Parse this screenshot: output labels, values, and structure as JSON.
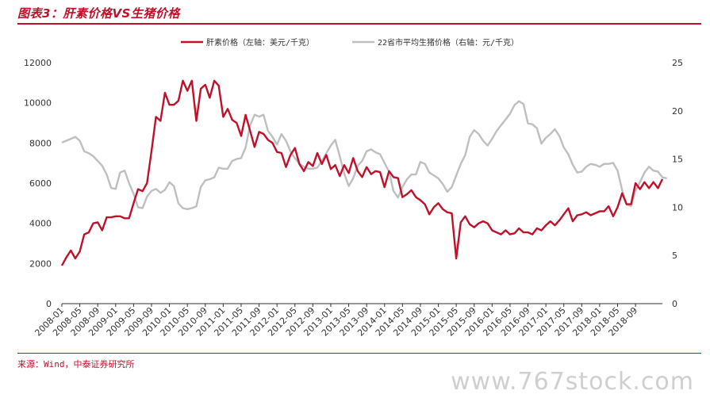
{
  "header": {
    "title": "图表3：肝素价格VS生猪价格"
  },
  "footer": {
    "source": "来源：Wind，中泰证券研究所",
    "watermark": "www.767stock.com"
  },
  "colors": {
    "heparin": "#c0102a",
    "hog": "#bfbfbf",
    "accent": "#c0102a"
  },
  "chart_data": {
    "type": "line",
    "x_start": "2008-01",
    "x_tick_labels": [
      "2008-01",
      "2008-05",
      "2008-09",
      "2009-01",
      "2009-05",
      "2009-09",
      "2010-01",
      "2010-05",
      "2010-09",
      "2011-01",
      "2011-05",
      "2011-09",
      "2012-01",
      "2012-05",
      "2012-09",
      "2013-01",
      "2013-05",
      "2013-09",
      "2014-01",
      "2014-05",
      "2014-09",
      "2015-01",
      "2015-05",
      "2015-09",
      "2016-01",
      "2016-05",
      "2016-09",
      "2017-01",
      "2017-05",
      "2017-09",
      "2018-01",
      "2018-05",
      "2018-09"
    ],
    "y_left": {
      "ticks": [
        0,
        2000,
        4000,
        6000,
        8000,
        10000,
        12000
      ],
      "range": [
        0,
        12000
      ]
    },
    "y_right": {
      "ticks": [
        0,
        5,
        10,
        15,
        20,
        25
      ],
      "range": [
        0,
        25
      ]
    },
    "legend": {
      "placement": "top",
      "items": [
        "肝素价格（左轴：美元/千克）",
        "22省市平均生猪价格（右轴：元/千克）"
      ]
    },
    "series": [
      {
        "name": "肝素价格（左轴：美元/千克）",
        "axis": "left",
        "values": [
          1900,
          2300,
          2650,
          2250,
          2600,
          3450,
          3550,
          4000,
          4050,
          3650,
          4300,
          4300,
          4350,
          4350,
          4250,
          4250,
          5000,
          5700,
          5600,
          6000,
          7600,
          9300,
          9100,
          10500,
          9900,
          9900,
          10100,
          11100,
          10600,
          11100,
          9100,
          10700,
          10900,
          10250,
          11100,
          10850,
          9300,
          9700,
          9150,
          9000,
          8350,
          9400,
          8600,
          7800,
          8550,
          8450,
          8150,
          8000,
          7550,
          7500,
          6800,
          7400,
          7750,
          6950,
          6600,
          7050,
          6850,
          7500,
          6950,
          7400,
          6700,
          6900,
          6350,
          6900,
          6500,
          7250,
          6600,
          6300,
          6800,
          6450,
          6600,
          6550,
          5800,
          6600,
          6300,
          6250,
          5300,
          5450,
          5650,
          5300,
          5150,
          4950,
          4450,
          4800,
          5000,
          4700,
          4550,
          4500,
          2250,
          4050,
          4350,
          3950,
          3800,
          4000,
          4100,
          4000,
          3650,
          3550,
          3450,
          3650,
          3450,
          3500,
          3750,
          3550,
          3550,
          3450,
          3750,
          3650,
          3900,
          4100,
          3900,
          4150,
          4450,
          4750,
          4100,
          4400,
          4450,
          4550,
          4400,
          4500,
          4600,
          4600,
          4850,
          4350,
          4800,
          5500,
          4950,
          4950,
          6000,
          5700,
          6050,
          5750,
          6050,
          5750,
          6200
        ]
      },
      {
        "name": "22省市平均生猪价格（右轴：元/千克）",
        "axis": "right",
        "values": [
          16.7,
          16.9,
          17.1,
          17.3,
          16.9,
          15.8,
          15.6,
          15.3,
          14.8,
          14.3,
          13.4,
          12.0,
          11.9,
          13.6,
          13.8,
          12.5,
          11.4,
          10.0,
          9.9,
          11.1,
          11.7,
          11.9,
          11.5,
          11.8,
          12.6,
          12.2,
          10.4,
          9.9,
          9.8,
          9.9,
          10.1,
          12.1,
          12.8,
          12.9,
          13.1,
          14.1,
          14.0,
          14.0,
          14.8,
          15.0,
          15.1,
          16.2,
          18.5,
          19.6,
          19.4,
          19.6,
          17.9,
          17.3,
          16.5,
          17.6,
          16.9,
          15.8,
          15.1,
          14.5,
          14.2,
          14.0,
          14.0,
          14.1,
          14.8,
          15.6,
          16.4,
          17.0,
          15.3,
          13.5,
          12.2,
          13.0,
          14.3,
          14.8,
          15.8,
          16.0,
          15.7,
          15.5,
          14.6,
          13.7,
          11.7,
          11.0,
          12.1,
          12.9,
          13.4,
          13.4,
          14.7,
          14.5,
          13.6,
          13.3,
          13.0,
          12.4,
          11.6,
          12.1,
          13.3,
          14.5,
          15.4,
          17.3,
          18.0,
          17.6,
          16.9,
          16.4,
          17.1,
          17.9,
          18.5,
          19.1,
          19.7,
          20.6,
          21.0,
          20.7,
          18.7,
          18.6,
          18.2,
          16.6,
          17.2,
          17.6,
          18.1,
          17.4,
          16.2,
          15.5,
          14.4,
          13.6,
          13.7,
          14.2,
          14.5,
          14.4,
          14.2,
          14.5,
          14.5,
          14.6,
          13.8,
          11.8,
          10.3,
          10.1,
          11.7,
          12.6,
          13.6,
          14.2,
          13.8,
          13.7,
          13.1,
          13.0
        ]
      }
    ]
  }
}
